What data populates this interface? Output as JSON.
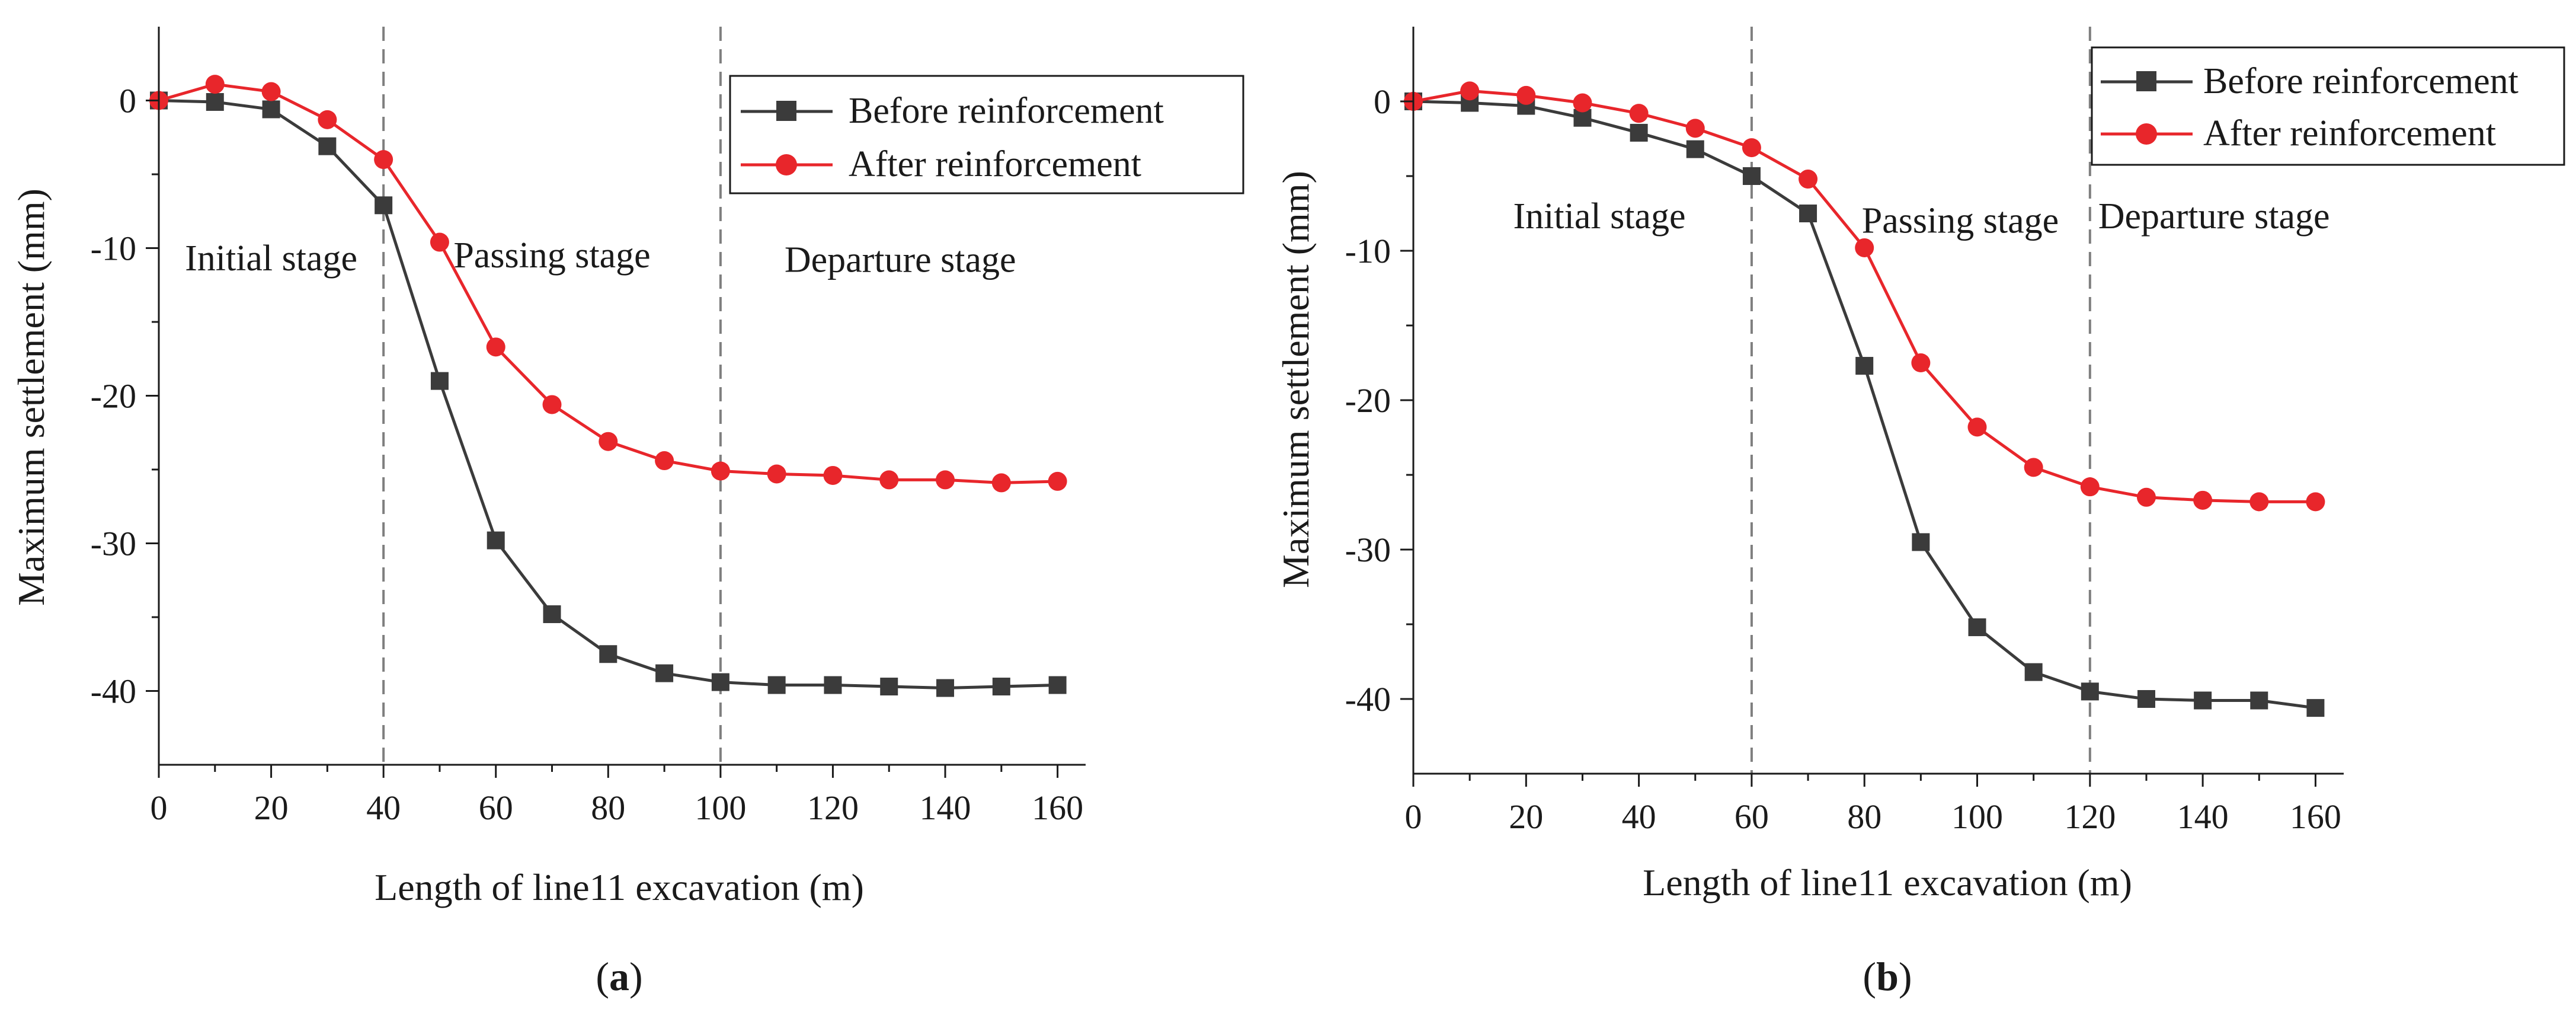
{
  "colors": {
    "before": "#3b3b3b",
    "after": "#e8262b",
    "axis": "#1a1a1a",
    "stage_line": "#7f7f7f"
  },
  "chart_data": [
    {
      "type": "line",
      "panel_label": "a",
      "xlabel": "Length of line11 excavation (m)",
      "ylabel": "Maximum settlement (mm)",
      "xlim": [
        0,
        165
      ],
      "ylim": [
        -45,
        5
      ],
      "xticks": [
        0,
        20,
        40,
        60,
        80,
        100,
        120,
        140,
        160
      ],
      "yticks": [
        0,
        -10,
        -20,
        -30,
        -40
      ],
      "legend": "top-right",
      "stage_lines": [
        40,
        100
      ],
      "stage_labels": [
        {
          "text": "Initial stage",
          "x": 20,
          "y": -10.7
        },
        {
          "text": "Passing stage",
          "x": 70,
          "y": -10.5
        },
        {
          "text": "Departure stage",
          "x": 132,
          "y": -10.8
        }
      ],
      "x": [
        0,
        10,
        20,
        30,
        40,
        50,
        60,
        70,
        80,
        90,
        100,
        110,
        120,
        130,
        140,
        150,
        160
      ],
      "series": [
        {
          "name": "Before reinforcement",
          "color_key": "before",
          "marker": "square",
          "values": [
            0,
            -0.1,
            -0.6,
            -3.1,
            -7.1,
            -19,
            -29.8,
            -34.8,
            -37.5,
            -38.8,
            -39.4,
            -39.6,
            -39.6,
            -39.7,
            -39.8,
            -39.7,
            -39.6
          ]
        },
        {
          "name": "After reinforcement",
          "color_key": "after",
          "marker": "circle",
          "values": [
            0,
            1.1,
            0.6,
            -1.3,
            -4,
            -9.6,
            -16.7,
            -20.6,
            -23.1,
            -24.4,
            -25.1,
            -25.3,
            -25.4,
            -25.7,
            -25.7,
            -25.9,
            -25.8
          ]
        }
      ]
    },
    {
      "type": "line",
      "panel_label": "b",
      "xlabel": "Length of line11 excavation (m)",
      "ylabel": "Maximum settlement (mm)",
      "xlim": [
        0,
        165
      ],
      "ylim": [
        -45,
        5
      ],
      "xticks": [
        0,
        20,
        40,
        60,
        80,
        100,
        120,
        140,
        160
      ],
      "yticks": [
        0,
        -10,
        -20,
        -30,
        -40
      ],
      "legend": "top-right",
      "stage_lines": [
        60,
        120
      ],
      "stage_labels": [
        {
          "text": "Initial stage",
          "x": 33,
          "y": -7.7
        },
        {
          "text": "Passing stage",
          "x": 97,
          "y": -8.0
        },
        {
          "text": "Departure stage",
          "x": 142,
          "y": -7.7
        }
      ],
      "x": [
        0,
        10,
        20,
        30,
        40,
        50,
        60,
        70,
        80,
        90,
        100,
        110,
        120,
        130,
        140,
        150,
        160
      ],
      "series": [
        {
          "name": "Before reinforcement",
          "color_key": "before",
          "marker": "square",
          "values": [
            0,
            -0.1,
            -0.3,
            -1.1,
            -2.1,
            -3.2,
            -5,
            -7.5,
            -17.7,
            -29.5,
            -35.2,
            -38.2,
            -39.5,
            -40,
            -40.1,
            -40.1,
            -40.6
          ]
        },
        {
          "name": "After reinforcement",
          "color_key": "after",
          "marker": "circle",
          "values": [
            0,
            0.7,
            0.4,
            -0.1,
            -0.8,
            -1.8,
            -3.1,
            -5.2,
            -9.8,
            -17.5,
            -21.8,
            -24.5,
            -25.8,
            -26.5,
            -26.7,
            -26.8,
            -26.8
          ]
        }
      ]
    }
  ]
}
